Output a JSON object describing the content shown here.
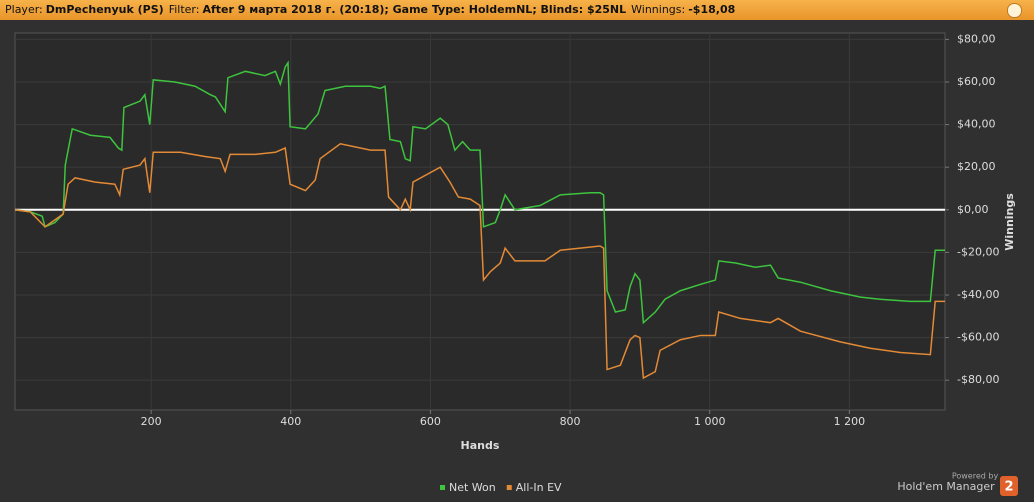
{
  "header": {
    "items": [
      {
        "label": "Player:",
        "value": "DmPechenyuk (PS)"
      },
      {
        "label": "Filter:",
        "value": "After 9 марта 2018 г. (20:18); Game Type: HoldemNL; Blinds: $25NL"
      },
      {
        "label": "Winnings:",
        "value": "-$18,08"
      }
    ]
  },
  "footer": {
    "powered": "Powered by",
    "brand": "Hold'em Manager",
    "version": "2"
  },
  "chart_data": {
    "type": "line",
    "xlabel": "Hands",
    "ylabel": "Winnings",
    "xlim": [
      5,
      1337
    ],
    "ylim": [
      -94,
      83
    ],
    "xticks": [
      200,
      400,
      600,
      800,
      {
        "value": 1000,
        "label": "1 000"
      },
      {
        "value": 1200,
        "label": "1 200"
      }
    ],
    "yticks": [
      {
        "value": 80,
        "label": "$80,00"
      },
      {
        "value": 60,
        "label": "$60,00"
      },
      {
        "value": 40,
        "label": "$40,00"
      },
      {
        "value": 20,
        "label": "$20,00"
      },
      {
        "value": 0,
        "label": "$0,00"
      },
      {
        "value": -20,
        "label": "-$20,00"
      },
      {
        "value": -40,
        "label": "-$40,00"
      },
      {
        "value": -60,
        "label": "-$60,00"
      },
      {
        "value": -80,
        "label": "-$80,00"
      }
    ],
    "grid": true,
    "series": [
      {
        "name": "Net Won",
        "color": "#3ec43e",
        "x": [
          5,
          27,
          44,
          48,
          62,
          74,
          77,
          84,
          87,
          113,
          141,
          153,
          158,
          161,
          184,
          191,
          198,
          203,
          234,
          263,
          285,
          292,
          306,
          310,
          335,
          363,
          378,
          385,
          392,
          396,
          399,
          421,
          439,
          449,
          478,
          514,
          528,
          535,
          542,
          557,
          564,
          571,
          575,
          593,
          614,
          625,
          635,
          646,
          657,
          671,
          676,
          693,
          700,
          707,
          721,
          757,
          786,
          829,
          843,
          848,
          853,
          865,
          879,
          886,
          893,
          900,
          905,
          922,
          936,
          958,
          987,
          1008,
          1013,
          1037,
          1065,
          1087,
          1098,
          1130,
          1173,
          1216,
          1244,
          1287,
          1316,
          1323,
          1337
        ],
        "values": [
          0,
          -1,
          -3,
          -8,
          -6,
          -2,
          21,
          33,
          38,
          35,
          34,
          29,
          28,
          48,
          51,
          54,
          40,
          61,
          60,
          58,
          54,
          53,
          46,
          62,
          65,
          63,
          65,
          59,
          67,
          69,
          39,
          38,
          45,
          56,
          58,
          58,
          57,
          58,
          33,
          32,
          24,
          23,
          39,
          38,
          43,
          40,
          28,
          32,
          28,
          28,
          -8,
          -6,
          0,
          7,
          0,
          2,
          7,
          8,
          8,
          7,
          -38,
          -48,
          -47,
          -36,
          -30,
          -33,
          -53,
          -48,
          -42,
          -38,
          -35,
          -33,
          -24,
          -25,
          -27,
          -26,
          -32,
          -34,
          -38,
          -41,
          -42,
          -43,
          -43,
          -19,
          -19
        ]
      },
      {
        "name": "All-In EV",
        "color": "#e38a36",
        "x": [
          5,
          27,
          48,
          74,
          81,
          91,
          120,
          148,
          155,
          160,
          184,
          191,
          198,
          203,
          242,
          277,
          299,
          306,
          313,
          349,
          378,
          392,
          399,
          421,
          435,
          442,
          471,
          514,
          535,
          540,
          557,
          564,
          571,
          575,
          614,
          628,
          640,
          657,
          671,
          676,
          686,
          700,
          707,
          721,
          764,
          786,
          843,
          848,
          853,
          872,
          886,
          893,
          900,
          905,
          922,
          929,
          958,
          987,
          1008,
          1013,
          1044,
          1087,
          1098,
          1130,
          1187,
          1230,
          1273,
          1316,
          1323,
          1337
        ],
        "values": [
          0,
          -1,
          -8,
          -2,
          12,
          15,
          13,
          12,
          7,
          19,
          21,
          24,
          8,
          27,
          27,
          25,
          24,
          18,
          26,
          26,
          27,
          29,
          12,
          9,
          14,
          24,
          31,
          28,
          28,
          6,
          0,
          5,
          0,
          13,
          20,
          13,
          6,
          5,
          2,
          -33,
          -29,
          -25,
          -18,
          -24,
          -24,
          -19,
          -17,
          -18,
          -75,
          -73,
          -61,
          -59,
          -60,
          -79,
          -76,
          -66,
          -61,
          -59,
          -59,
          -48,
          -51,
          -53,
          -51,
          -57,
          -62,
          -65,
          -67,
          -68,
          -43,
          -43
        ]
      }
    ]
  }
}
